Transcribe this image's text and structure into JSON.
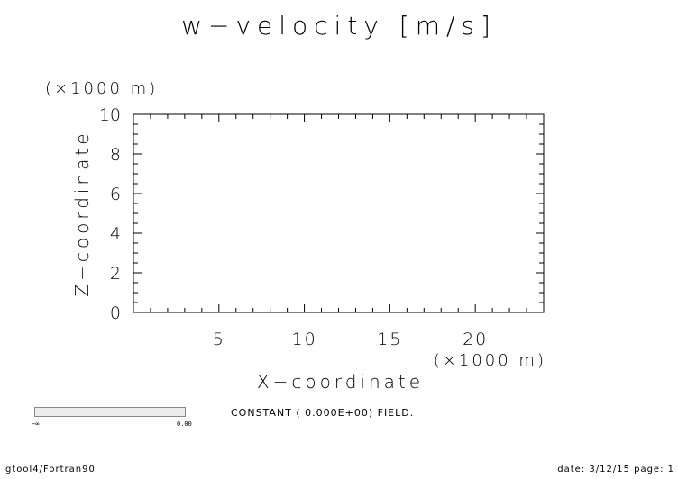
{
  "chart_data": {
    "type": "heatmap",
    "title": "w−velocity [m/s]",
    "xlabel": "X−coordinate",
    "ylabel": "Z−coordinate",
    "x_unit": "(×1000 m)",
    "y_unit": "(×1000 m)",
    "xlim": [
      0,
      24
    ],
    "ylim": [
      0,
      10
    ],
    "x_ticks": [
      5,
      10,
      15,
      20
    ],
    "y_ticks": [
      0,
      2,
      4,
      6,
      8,
      10
    ],
    "field_value": 0.0,
    "grid": false
  },
  "message": "CONSTANT ( 0.000E+00) FIELD.",
  "colorbar": {
    "min_label": "−∞",
    "max_label": "0.00"
  },
  "footer": {
    "left": "gtool4/Fortran90",
    "right": "date: 3/12/15 page: 1"
  }
}
